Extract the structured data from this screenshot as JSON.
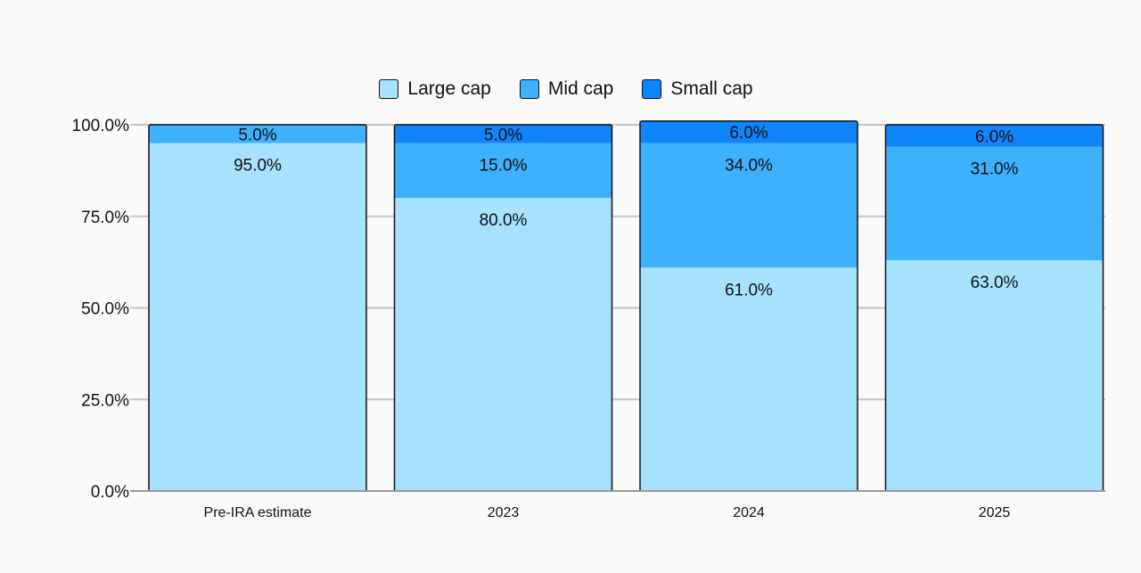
{
  "chart_data": {
    "type": "bar",
    "stacked": true,
    "categories": [
      "Pre-IRA estimate",
      "2023",
      "2024",
      "2025"
    ],
    "series": [
      {
        "name": "Large cap",
        "values": [
          95.0,
          80.0,
          61.0,
          63.0
        ],
        "labels": [
          "95.0%",
          "80.0%",
          "61.0%",
          "63.0%"
        ],
        "color": "#a6e2fd"
      },
      {
        "name": "Mid cap",
        "values": [
          5.0,
          15.0,
          34.0,
          31.0
        ],
        "labels": [
          "5.0%",
          "15.0%",
          "34.0%",
          "31.0%"
        ],
        "color": "#3db1fc"
      },
      {
        "name": "Small cap",
        "values": [
          0.0,
          5.0,
          6.0,
          6.0
        ],
        "labels": [
          "",
          "5.0%",
          "6.0%",
          "6.0%"
        ],
        "color": "#0f85fd"
      }
    ],
    "yticks": [
      "0.0%",
      "25.0%",
      "50.0%",
      "75.0%",
      "100.0%"
    ],
    "ytick_values": [
      0,
      25,
      50,
      75,
      100
    ],
    "ylim": [
      0,
      100
    ],
    "grid": true,
    "legend_position": "top-center",
    "title": "",
    "xlabel": "",
    "ylabel": ""
  }
}
